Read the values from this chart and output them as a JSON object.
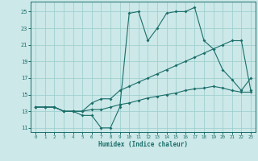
{
  "xlabel": "Humidex (Indice chaleur)",
  "xlim": [
    -0.5,
    23.5
  ],
  "ylim": [
    10.5,
    26.2
  ],
  "yticks": [
    11,
    13,
    15,
    17,
    19,
    21,
    23,
    25
  ],
  "xticks": [
    0,
    1,
    2,
    3,
    4,
    5,
    6,
    7,
    8,
    9,
    10,
    11,
    12,
    13,
    14,
    15,
    16,
    17,
    18,
    19,
    20,
    21,
    22,
    23
  ],
  "bg_color": "#cce8e8",
  "grid_color": "#99cccc",
  "line_color": "#1a6e6a",
  "line1_x": [
    0,
    1,
    2,
    3,
    4,
    5,
    6,
    7,
    8,
    9,
    10,
    11,
    12,
    13,
    14,
    15,
    16,
    17,
    18,
    19,
    20,
    21,
    22,
    23
  ],
  "line1_y": [
    13.5,
    13.5,
    13.5,
    13.0,
    13.0,
    12.5,
    12.5,
    11.0,
    11.0,
    13.5,
    24.8,
    25.0,
    21.5,
    23.0,
    24.8,
    25.0,
    25.0,
    25.5,
    21.5,
    20.5,
    18.0,
    16.8,
    15.5,
    17.0
  ],
  "line2_x": [
    0,
    1,
    2,
    3,
    4,
    5,
    6,
    7,
    8,
    9,
    10,
    11,
    12,
    13,
    14,
    15,
    16,
    17,
    18,
    19,
    20,
    21,
    22,
    23
  ],
  "line2_y": [
    13.5,
    13.5,
    13.5,
    13.0,
    13.0,
    13.0,
    14.0,
    14.5,
    14.5,
    15.5,
    16.0,
    16.5,
    17.0,
    17.5,
    18.0,
    18.5,
    19.0,
    19.5,
    20.0,
    20.5,
    21.0,
    21.5,
    21.5,
    15.5
  ],
  "line3_x": [
    0,
    1,
    2,
    3,
    4,
    5,
    6,
    7,
    8,
    9,
    10,
    11,
    12,
    13,
    14,
    15,
    16,
    17,
    18,
    19,
    20,
    21,
    22,
    23
  ],
  "line3_y": [
    13.5,
    13.5,
    13.5,
    13.0,
    13.0,
    13.0,
    13.2,
    13.2,
    13.5,
    13.8,
    14.0,
    14.3,
    14.6,
    14.8,
    15.0,
    15.2,
    15.5,
    15.7,
    15.8,
    16.0,
    15.8,
    15.5,
    15.3,
    15.3
  ]
}
